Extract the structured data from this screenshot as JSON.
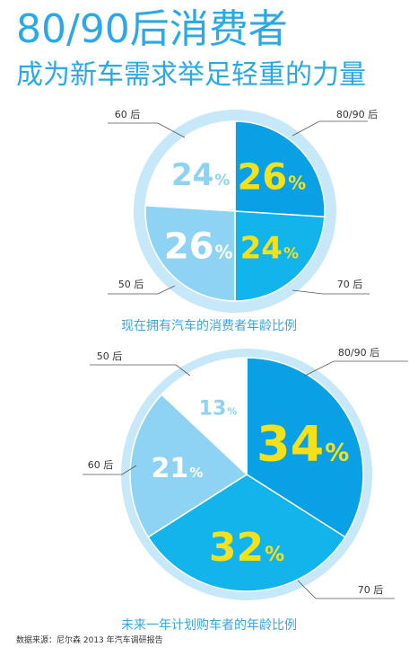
{
  "header": {
    "title": "80/90后消费者",
    "subtitle": "成为新车需求举足轻重的力量"
  },
  "colors": {
    "blue_dark": "#0aa0e6",
    "blue_mid": "#12b4ec",
    "blue_light": "#8fd3f4",
    "white": "#ffffff",
    "ring": "#c6e8f8",
    "yellow": "#f5e11a",
    "title": "#2aa9e6"
  },
  "source": "数据来源：尼尔森 2013 年汽车调研报告",
  "chart_data": [
    {
      "type": "pie",
      "title": "现在拥有汽车的消费者年龄比例",
      "categories": [
        "80/90 后",
        "70 后",
        "50 后",
        "60 后"
      ],
      "values": [
        26,
        24,
        26,
        24
      ],
      "labels": [
        "26",
        "24",
        "26",
        "24"
      ],
      "unit": "%"
    },
    {
      "type": "pie",
      "title": "未来一年计划购车者的年龄比例",
      "categories": [
        "80/90 后",
        "70 后",
        "60 后",
        "50 后"
      ],
      "values": [
        34,
        32,
        21,
        13
      ],
      "labels": [
        "34",
        "32",
        "21",
        "13"
      ],
      "unit": "%"
    }
  ]
}
